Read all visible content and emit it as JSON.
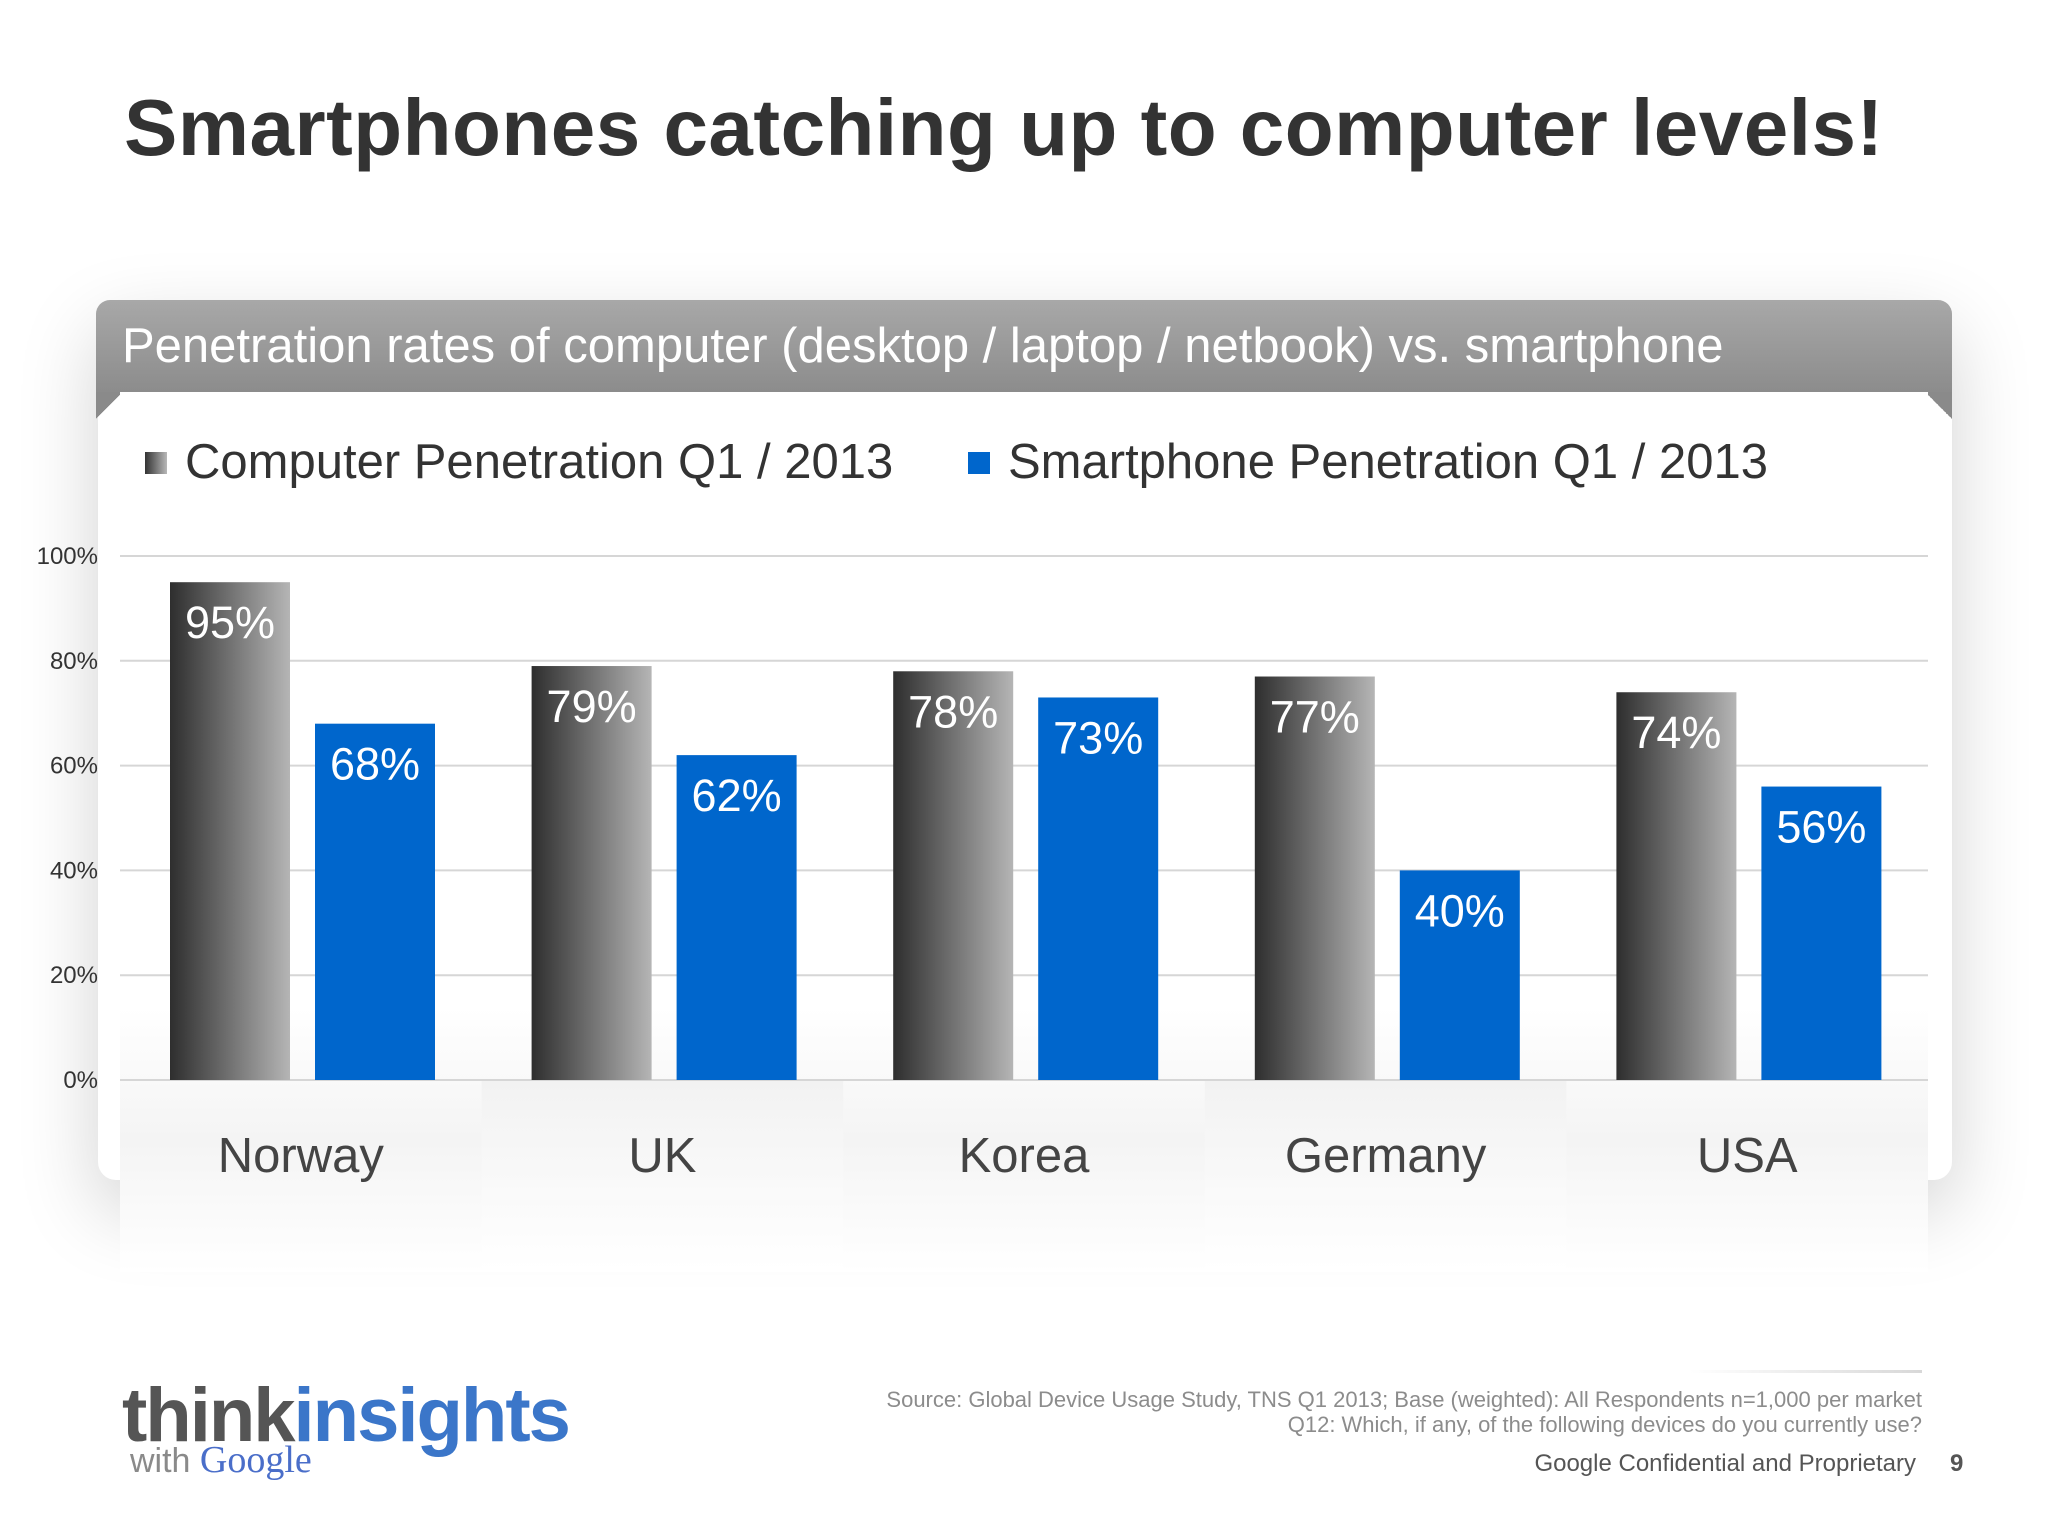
{
  "slide": {
    "title": "Smartphones catching up to computer levels!",
    "panel_header": "Penetration rates of computer (desktop / laptop / netbook) vs. smartphone"
  },
  "chart_data": {
    "type": "bar",
    "categories": [
      "Norway",
      "UK",
      "Korea",
      "Germany",
      "USA"
    ],
    "series": [
      {
        "name": "Computer Penetration Q1 / 2013",
        "values": [
          95,
          79,
          78,
          77,
          74
        ],
        "color": "#5a5a5a"
      },
      {
        "name": "Smartphone Penetration Q1 / 2013",
        "values": [
          68,
          62,
          73,
          40,
          56
        ],
        "color": "#0066cc"
      }
    ],
    "data_labels": [
      [
        "95%",
        "79%",
        "78%",
        "77%",
        "74%"
      ],
      [
        "68%",
        "62%",
        "73%",
        "40%",
        "56%"
      ]
    ],
    "yticks": [
      "0%",
      "20%",
      "40%",
      "60%",
      "80%",
      "100%"
    ],
    "ylim": [
      0,
      100
    ],
    "grid": true,
    "legend_position": "top-left"
  },
  "footer": {
    "logo_think": "think",
    "logo_insights": "insights",
    "logo_with": "with",
    "logo_google": "Google",
    "source_line1": "Source: Global Device Usage Study, TNS Q1 2013; Base (weighted): All Respondents n=1,000 per market",
    "source_line2": "Q12:  Which, if any, of the following devices do you currently use?",
    "confidential": "Google Confidential and Proprietary",
    "page_number": "9"
  }
}
